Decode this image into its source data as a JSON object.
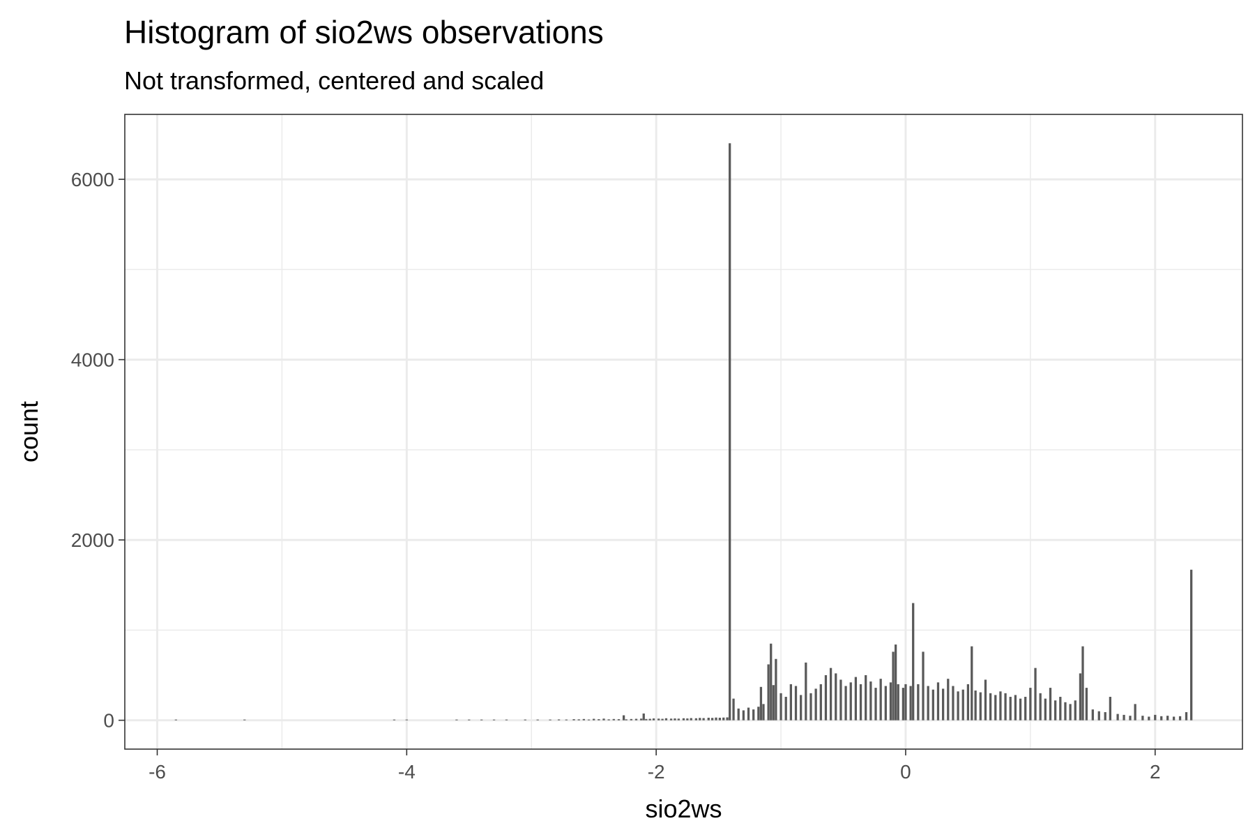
{
  "chart_data": {
    "type": "bar",
    "title": "Histogram of sio2ws observations",
    "subtitle": "Not transformed, centered and scaled",
    "xlabel": "sio2ws",
    "ylabel": "count",
    "xlim": [
      -6.26,
      2.7
    ],
    "ylim": [
      -320,
      6720
    ],
    "x_ticks": [
      -6,
      -4,
      -2,
      0,
      2
    ],
    "x_tick_labels": [
      "-6",
      "-4",
      "-2",
      "0",
      "2"
    ],
    "y_ticks": [
      0,
      2000,
      4000,
      6000
    ],
    "y_tick_labels": [
      "0",
      "2000",
      "4000",
      "6000"
    ],
    "grid": true,
    "legend": "none",
    "bar_color": "#595959",
    "bin_width": 0.0183,
    "bars": [
      [
        -5.85,
        5
      ],
      [
        -5.3,
        4
      ],
      [
        -4.1,
        5
      ],
      [
        -4.0,
        4
      ],
      [
        -3.6,
        6
      ],
      [
        -3.5,
        5
      ],
      [
        -3.4,
        7
      ],
      [
        -3.3,
        5
      ],
      [
        -3.2,
        6
      ],
      [
        -3.05,
        8
      ],
      [
        -2.95,
        6
      ],
      [
        -2.85,
        7
      ],
      [
        -2.78,
        9
      ],
      [
        -2.72,
        8
      ],
      [
        -2.66,
        12
      ],
      [
        -2.62,
        10
      ],
      [
        -2.58,
        14
      ],
      [
        -2.54,
        8
      ],
      [
        -2.5,
        16
      ],
      [
        -2.46,
        12
      ],
      [
        -2.42,
        18
      ],
      [
        -2.38,
        10
      ],
      [
        -2.34,
        14
      ],
      [
        -2.3,
        12
      ],
      [
        -2.26,
        55
      ],
      [
        -2.24,
        10
      ],
      [
        -2.2,
        14
      ],
      [
        -2.16,
        16
      ],
      [
        -2.12,
        18
      ],
      [
        -2.1,
        75
      ],
      [
        -2.08,
        14
      ],
      [
        -2.05,
        16
      ],
      [
        -2.02,
        20
      ],
      [
        -1.98,
        18
      ],
      [
        -1.95,
        16
      ],
      [
        -1.92,
        22
      ],
      [
        -1.88,
        18
      ],
      [
        -1.85,
        20
      ],
      [
        -1.82,
        18
      ],
      [
        -1.78,
        22
      ],
      [
        -1.75,
        20
      ],
      [
        -1.72,
        24
      ],
      [
        -1.68,
        22
      ],
      [
        -1.65,
        26
      ],
      [
        -1.62,
        24
      ],
      [
        -1.58,
        28
      ],
      [
        -1.55,
        26
      ],
      [
        -1.52,
        30
      ],
      [
        -1.49,
        28
      ],
      [
        -1.46,
        30
      ],
      [
        -1.43,
        32
      ],
      [
        -1.41,
        6400
      ],
      [
        -1.38,
        240
      ],
      [
        -1.34,
        130
      ],
      [
        -1.3,
        110
      ],
      [
        -1.26,
        140
      ],
      [
        -1.22,
        120
      ],
      [
        -1.18,
        150
      ],
      [
        -1.16,
        370
      ],
      [
        -1.14,
        180
      ],
      [
        -1.1,
        620
      ],
      [
        -1.08,
        850
      ],
      [
        -1.06,
        390
      ],
      [
        -1.04,
        680
      ],
      [
        -1.0,
        300
      ],
      [
        -0.96,
        260
      ],
      [
        -0.92,
        400
      ],
      [
        -0.88,
        380
      ],
      [
        -0.84,
        280
      ],
      [
        -0.8,
        640
      ],
      [
        -0.76,
        300
      ],
      [
        -0.72,
        350
      ],
      [
        -0.68,
        400
      ],
      [
        -0.64,
        500
      ],
      [
        -0.6,
        580
      ],
      [
        -0.56,
        520
      ],
      [
        -0.52,
        450
      ],
      [
        -0.48,
        380
      ],
      [
        -0.44,
        420
      ],
      [
        -0.4,
        480
      ],
      [
        -0.36,
        400
      ],
      [
        -0.32,
        500
      ],
      [
        -0.28,
        430
      ],
      [
        -0.24,
        360
      ],
      [
        -0.2,
        460
      ],
      [
        -0.16,
        380
      ],
      [
        -0.12,
        420
      ],
      [
        -0.1,
        760
      ],
      [
        -0.08,
        840
      ],
      [
        -0.06,
        400
      ],
      [
        -0.02,
        360
      ],
      [
        0.0,
        400
      ],
      [
        0.04,
        380
      ],
      [
        0.06,
        1300
      ],
      [
        0.1,
        400
      ],
      [
        0.14,
        760
      ],
      [
        0.18,
        380
      ],
      [
        0.22,
        340
      ],
      [
        0.26,
        420
      ],
      [
        0.3,
        350
      ],
      [
        0.34,
        460
      ],
      [
        0.38,
        380
      ],
      [
        0.42,
        320
      ],
      [
        0.46,
        340
      ],
      [
        0.5,
        400
      ],
      [
        0.53,
        820
      ],
      [
        0.56,
        330
      ],
      [
        0.6,
        310
      ],
      [
        0.64,
        450
      ],
      [
        0.68,
        300
      ],
      [
        0.72,
        280
      ],
      [
        0.76,
        320
      ],
      [
        0.8,
        300
      ],
      [
        0.84,
        260
      ],
      [
        0.88,
        280
      ],
      [
        0.92,
        240
      ],
      [
        0.96,
        260
      ],
      [
        1.0,
        360
      ],
      [
        1.04,
        580
      ],
      [
        1.08,
        300
      ],
      [
        1.12,
        240
      ],
      [
        1.16,
        360
      ],
      [
        1.2,
        220
      ],
      [
        1.24,
        260
      ],
      [
        1.28,
        200
      ],
      [
        1.32,
        180
      ],
      [
        1.36,
        220
      ],
      [
        1.4,
        520
      ],
      [
        1.42,
        820
      ],
      [
        1.45,
        360
      ],
      [
        1.5,
        120
      ],
      [
        1.55,
        100
      ],
      [
        1.6,
        90
      ],
      [
        1.64,
        260
      ],
      [
        1.7,
        70
      ],
      [
        1.75,
        60
      ],
      [
        1.8,
        50
      ],
      [
        1.84,
        180
      ],
      [
        1.9,
        50
      ],
      [
        1.95,
        40
      ],
      [
        2.0,
        60
      ],
      [
        2.05,
        45
      ],
      [
        2.1,
        50
      ],
      [
        2.15,
        40
      ],
      [
        2.2,
        45
      ],
      [
        2.25,
        90
      ],
      [
        2.29,
        1670
      ]
    ]
  }
}
